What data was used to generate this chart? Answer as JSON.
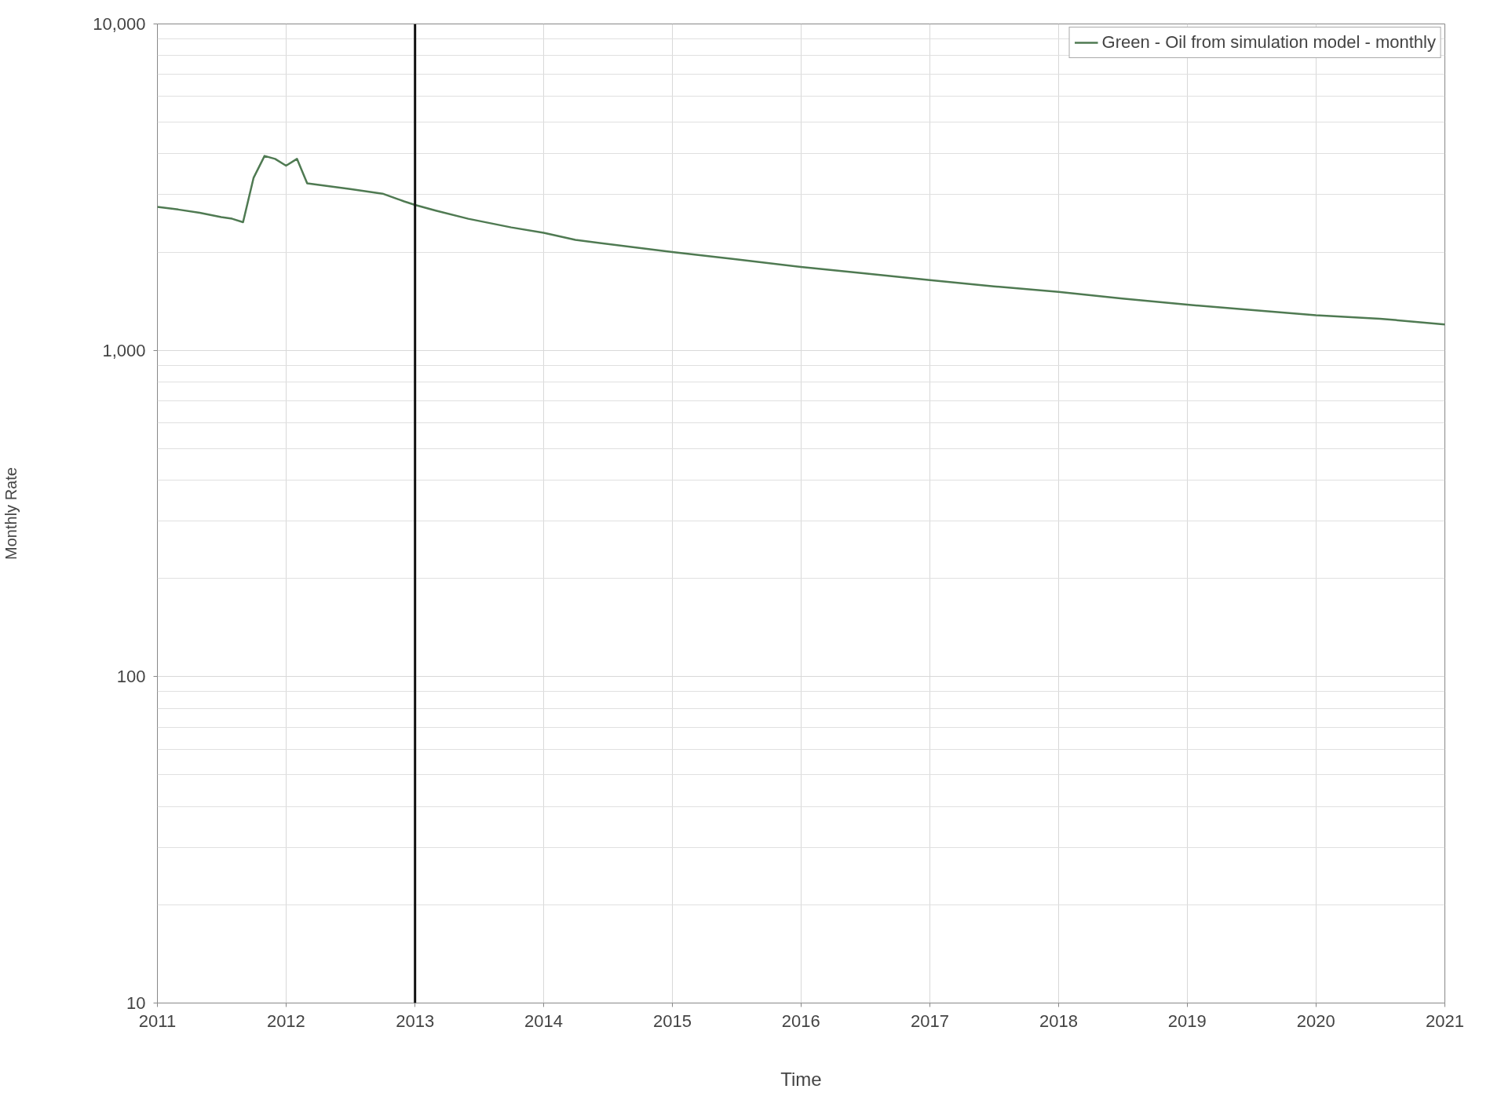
{
  "chart_data": {
    "type": "line",
    "xlabel": "Time",
    "ylabel": "Monthly Rate",
    "log": "y",
    "grid": true,
    "legend": "top right",
    "line_style": "solid",
    "marker": "none",
    "ylim": [
      10,
      10000
    ],
    "yticks": [
      10,
      100,
      {
        "value": 1000,
        "label": "1,000"
      },
      {
        "value": 10000,
        "label": "10,000"
      }
    ],
    "xlim": [
      "2011-01-01",
      "2021-01-01"
    ],
    "xticks": [
      "2011",
      "2012",
      "2013",
      "2014",
      "2015",
      "2016",
      "2017",
      "2018",
      "2019",
      "2020",
      "2021"
    ],
    "ref_lines": [
      {
        "axis": "x",
        "value": "2013-01-01",
        "color": "#111111",
        "line_style": "solid"
      }
    ],
    "series": [
      {
        "name": "Green - Oil from simulation model - monthly",
        "color": "#4f7a52",
        "x": [
          "2011-01",
          "2011-03",
          "2011-05",
          "2011-07",
          "2011-08",
          "2011-09",
          "2011-10",
          "2011-11",
          "2011-12",
          "2012-01",
          "2012-02",
          "2012-03",
          "2012-07",
          "2012-10",
          "2012-12",
          "2013-01",
          "2013-03",
          "2013-06",
          "2013-10",
          "2014-01",
          "2014-04",
          "2015-01",
          "2015-07",
          "2016-01",
          "2016-07",
          "2017-01",
          "2017-07",
          "2018-01",
          "2018-07",
          "2019-01",
          "2019-07",
          "2020-01",
          "2020-07",
          "2021-01"
        ],
        "values": [
          2750,
          2700,
          2640,
          2560,
          2530,
          2470,
          3380,
          3940,
          3860,
          3680,
          3860,
          3250,
          3120,
          3020,
          2860,
          2790,
          2680,
          2530,
          2380,
          2290,
          2180,
          2000,
          1900,
          1800,
          1720,
          1640,
          1570,
          1510,
          1440,
          1380,
          1330,
          1280,
          1250,
          1200
        ]
      }
    ]
  }
}
